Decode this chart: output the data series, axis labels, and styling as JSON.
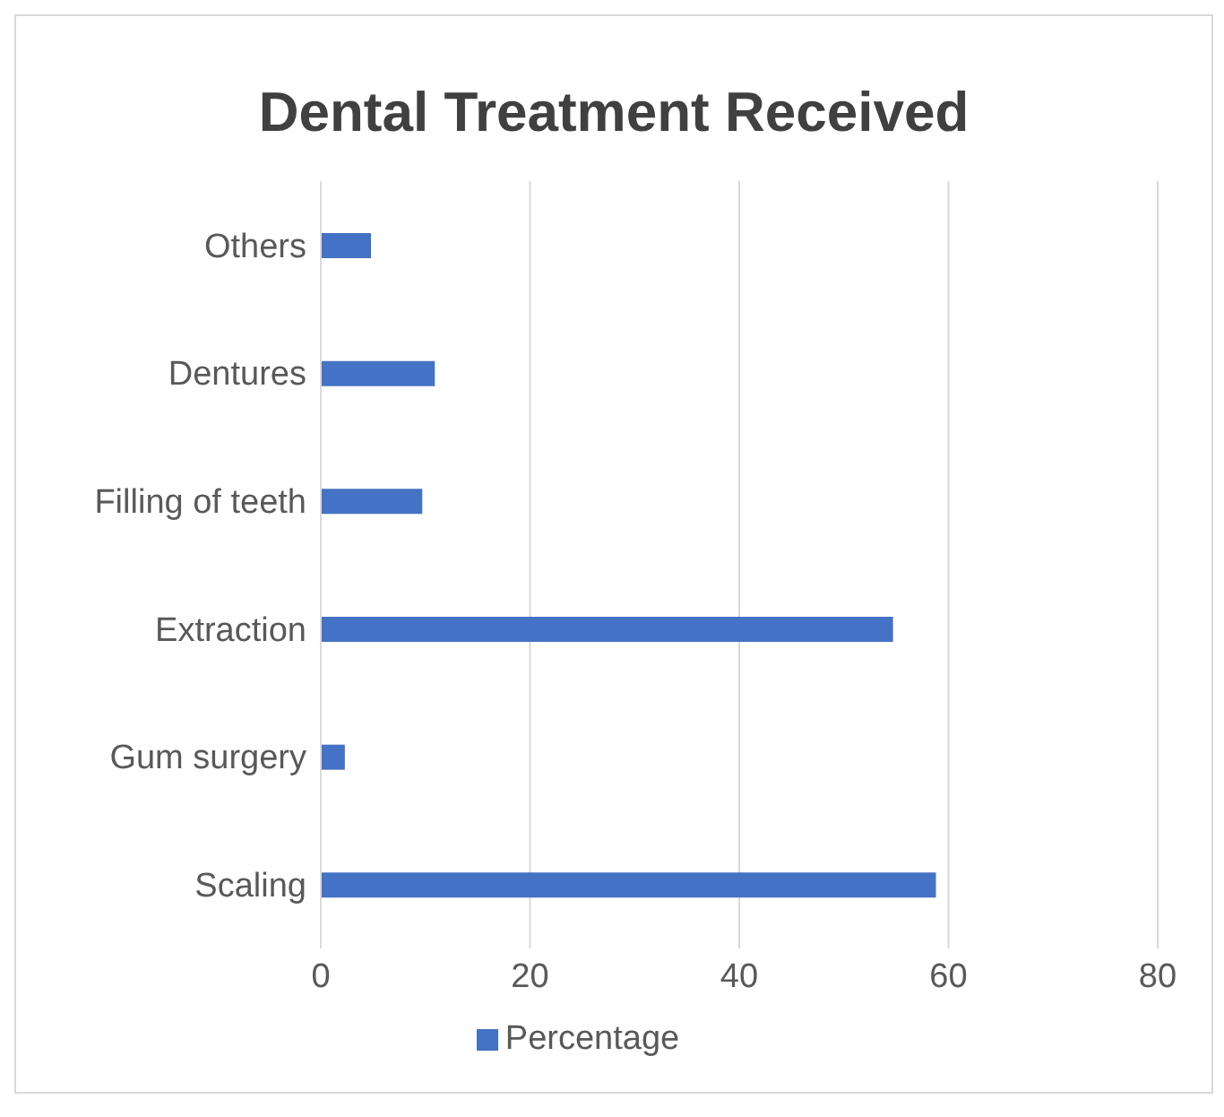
{
  "chart_data": {
    "type": "bar",
    "orientation": "horizontal",
    "title": "Dental Treatment Received",
    "categories": [
      "Others",
      "Dentures",
      "Filling of teeth",
      "Extraction",
      "Gum surgery",
      "Scaling"
    ],
    "series": [
      {
        "name": "Percentage",
        "color": "#4472c4",
        "values": [
          4.8,
          10.9,
          9.7,
          54.7,
          2.3,
          58.8
        ]
      }
    ],
    "xlim": [
      0,
      80
    ],
    "xticks": [
      0,
      20,
      40,
      60,
      80
    ],
    "grid": "x",
    "legend": "bottom"
  }
}
